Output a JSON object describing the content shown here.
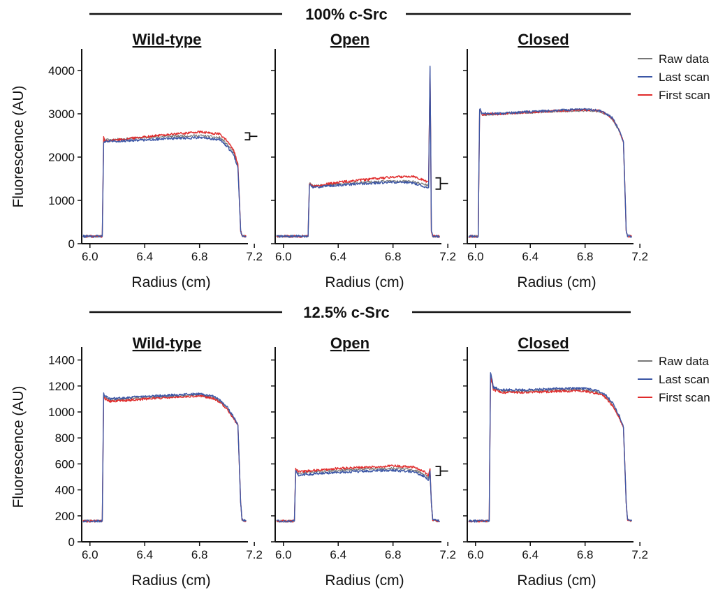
{
  "legend": [
    {
      "name": "Raw data",
      "color": "#777777"
    },
    {
      "name": "Last scan",
      "color": "#3b56a5"
    },
    {
      "name": "First scan",
      "color": "#e02b2b"
    }
  ],
  "chart_data": [
    {
      "type": "line",
      "group": "100% c-Src",
      "title": "Wild-type",
      "xlabel": "Radius (cm)",
      "ylabel": "Fluorescence (AU)",
      "xlim": [
        5.94,
        7.24
      ],
      "ylim": [
        0,
        4500
      ],
      "xticks": [
        6.0,
        6.4,
        6.8,
        7.2
      ],
      "xtick_labels": [
        "6.0",
        "6.4",
        "6.8",
        "7.2"
      ],
      "yticks": [
        0,
        1000,
        2000,
        3000,
        4000
      ],
      "ytick_labels": [
        "0",
        "1000",
        "2000",
        "3000",
        "4000"
      ],
      "series": [
        {
          "name": "Raw data",
          "x": [
            5.95,
            6.09,
            6.1,
            6.11,
            6.2,
            6.4,
            6.6,
            6.8,
            6.95,
            7.0,
            7.05,
            7.08,
            7.1,
            7.11,
            7.14
          ],
          "y": [
            170,
            170,
            2380,
            2400,
            2410,
            2450,
            2480,
            2500,
            2450,
            2300,
            2100,
            1800,
            300,
            180,
            170
          ]
        },
        {
          "name": "Last scan",
          "x": [
            5.95,
            6.09,
            6.1,
            6.11,
            6.2,
            6.4,
            6.6,
            6.8,
            6.95,
            7.0,
            7.05,
            7.08,
            7.1,
            7.11,
            7.14
          ],
          "y": [
            170,
            170,
            2350,
            2370,
            2370,
            2400,
            2430,
            2450,
            2400,
            2250,
            2050,
            1750,
            300,
            180,
            170
          ]
        },
        {
          "name": "First scan",
          "x": [
            5.95,
            6.09,
            6.1,
            6.11,
            6.2,
            6.4,
            6.6,
            6.8,
            6.95,
            7.0,
            7.05,
            7.08,
            7.1,
            7.11,
            7.14
          ],
          "y": [
            170,
            170,
            2450,
            2370,
            2400,
            2470,
            2530,
            2580,
            2530,
            2380,
            2150,
            1850,
            300,
            180,
            170
          ]
        }
      ],
      "bracket": {
        "x": 7.13,
        "y_low": 2400,
        "y_high": 2560
      }
    },
    {
      "type": "line",
      "group": "100% c-Src",
      "title": "Open",
      "xlabel": "Radius (cm)",
      "ylabel": "",
      "xlim": [
        5.94,
        7.24
      ],
      "ylim": [
        0,
        4500
      ],
      "xticks": [
        6.0,
        6.4,
        6.8,
        7.2
      ],
      "xtick_labels": [
        "6.0",
        "6.4",
        "6.8",
        "7.2"
      ],
      "yticks": [
        0,
        1000,
        2000,
        3000,
        4000
      ],
      "ytick_labels": [],
      "series": [
        {
          "name": "Raw data",
          "x": [
            5.95,
            6.18,
            6.19,
            6.22,
            6.4,
            6.6,
            6.8,
            6.95,
            7.05,
            7.06,
            7.07,
            7.075,
            7.08,
            7.09,
            7.14
          ],
          "y": [
            170,
            170,
            1400,
            1330,
            1380,
            1420,
            1450,
            1430,
            1350,
            1350,
            4050,
            2500,
            300,
            170,
            170
          ]
        },
        {
          "name": "Last scan",
          "x": [
            5.95,
            6.18,
            6.19,
            6.22,
            6.4,
            6.6,
            6.8,
            6.95,
            7.05,
            7.06,
            7.07,
            7.075,
            7.08,
            7.09,
            7.14
          ],
          "y": [
            170,
            170,
            1380,
            1300,
            1350,
            1390,
            1420,
            1400,
            1300,
            1300,
            4100,
            2500,
            300,
            170,
            170
          ]
        },
        {
          "name": "First scan",
          "x": [
            5.95,
            6.18,
            6.19,
            6.22,
            6.4,
            6.6,
            6.8,
            6.95,
            7.05,
            7.06,
            7.07,
            7.075,
            7.08,
            7.09,
            7.14
          ],
          "y": [
            170,
            170,
            1400,
            1320,
            1420,
            1480,
            1540,
            1560,
            1430,
            1430,
            4000,
            2500,
            300,
            170,
            170
          ]
        }
      ],
      "bracket": {
        "x": 7.11,
        "y_low": 1260,
        "y_high": 1520
      }
    },
    {
      "type": "line",
      "group": "100% c-Src",
      "title": "Closed",
      "xlabel": "Radius (cm)",
      "ylabel": "",
      "xlim": [
        5.94,
        7.24
      ],
      "ylim": [
        0,
        4500
      ],
      "xticks": [
        6.0,
        6.4,
        6.8,
        7.2
      ],
      "xtick_labels": [
        "6.0",
        "6.4",
        "6.8",
        "7.2"
      ],
      "yticks": [
        0,
        1000,
        2000,
        3000,
        4000
      ],
      "ytick_labels": [],
      "series": [
        {
          "name": "Raw data",
          "x": [
            5.95,
            6.02,
            6.03,
            6.05,
            6.2,
            6.4,
            6.6,
            6.8,
            6.9,
            6.95,
            7.0,
            7.05,
            7.08,
            7.1,
            7.11,
            7.14
          ],
          "y": [
            170,
            170,
            3080,
            2980,
            3000,
            3030,
            3060,
            3080,
            3060,
            3000,
            2880,
            2600,
            2350,
            300,
            180,
            170
          ]
        },
        {
          "name": "Last scan",
          "x": [
            5.95,
            6.02,
            6.03,
            6.05,
            6.2,
            6.4,
            6.6,
            6.8,
            6.9,
            6.95,
            7.0,
            7.05,
            7.08,
            7.1,
            7.11,
            7.14
          ],
          "y": [
            170,
            170,
            3120,
            3000,
            3010,
            3050,
            3080,
            3100,
            3080,
            3010,
            2900,
            2620,
            2350,
            300,
            180,
            170
          ]
        },
        {
          "name": "First scan",
          "x": [
            5.95,
            6.02,
            6.03,
            6.05,
            6.2,
            6.4,
            6.6,
            6.8,
            6.9,
            6.95,
            7.0,
            7.05,
            7.08,
            7.1,
            7.11,
            7.14
          ],
          "y": [
            170,
            170,
            3100,
            2990,
            3000,
            3040,
            3070,
            3090,
            3070,
            3000,
            2890,
            2610,
            2350,
            300,
            180,
            170
          ]
        }
      ]
    },
    {
      "type": "line",
      "group": "12.5% c-Src",
      "title": "Wild-type",
      "xlabel": "Radius (cm)",
      "ylabel": "Fluorescence (AU)",
      "xlim": [
        5.94,
        7.24
      ],
      "ylim": [
        0,
        1500
      ],
      "xticks": [
        6.0,
        6.4,
        6.8,
        7.2
      ],
      "xtick_labels": [
        "6.0",
        "6.4",
        "6.8",
        "7.2"
      ],
      "yticks": [
        0,
        200,
        400,
        600,
        800,
        1000,
        1200,
        1400
      ],
      "ytick_labels": [
        "0",
        "200",
        "400",
        "600",
        "800",
        "1000",
        "1200",
        "1400"
      ],
      "series": [
        {
          "name": "Raw data",
          "x": [
            5.95,
            6.09,
            6.1,
            6.11,
            6.15,
            6.4,
            6.6,
            6.8,
            6.9,
            6.95,
            7.0,
            7.05,
            7.08,
            7.1,
            7.11,
            7.14
          ],
          "y": [
            160,
            160,
            1140,
            1110,
            1090,
            1110,
            1120,
            1130,
            1110,
            1080,
            1030,
            950,
            900,
            300,
            170,
            160
          ]
        },
        {
          "name": "Last scan",
          "x": [
            5.95,
            6.09,
            6.1,
            6.11,
            6.15,
            6.4,
            6.6,
            6.8,
            6.9,
            6.95,
            7.0,
            7.05,
            7.08,
            7.1,
            7.11,
            7.14
          ],
          "y": [
            160,
            160,
            1150,
            1120,
            1100,
            1120,
            1130,
            1140,
            1120,
            1090,
            1040,
            960,
            900,
            300,
            170,
            160
          ]
        },
        {
          "name": "First scan",
          "x": [
            5.95,
            6.09,
            6.1,
            6.11,
            6.15,
            6.4,
            6.6,
            6.8,
            6.9,
            6.95,
            7.0,
            7.05,
            7.08,
            7.1,
            7.11,
            7.14
          ],
          "y": [
            160,
            160,
            1120,
            1100,
            1080,
            1100,
            1115,
            1125,
            1105,
            1075,
            1025,
            945,
            900,
            300,
            170,
            160
          ]
        }
      ]
    },
    {
      "type": "line",
      "group": "12.5% c-Src",
      "title": "Open",
      "xlabel": "Radius (cm)",
      "ylabel": "",
      "xlim": [
        5.94,
        7.24
      ],
      "ylim": [
        0,
        1500
      ],
      "xticks": [
        6.0,
        6.4,
        6.8,
        7.2
      ],
      "xtick_labels": [
        "6.0",
        "6.4",
        "6.8",
        "7.2"
      ],
      "yticks": [
        0,
        200,
        400,
        600,
        800,
        1000,
        1200,
        1400
      ],
      "ytick_labels": [],
      "series": [
        {
          "name": "Raw data",
          "x": [
            5.95,
            6.08,
            6.09,
            6.11,
            6.4,
            6.6,
            6.8,
            6.95,
            7.03,
            7.06,
            7.07,
            7.08,
            7.09,
            7.14
          ],
          "y": [
            160,
            160,
            560,
            530,
            550,
            560,
            565,
            555,
            520,
            490,
            550,
            300,
            170,
            160
          ]
        },
        {
          "name": "Last scan",
          "x": [
            5.95,
            6.08,
            6.09,
            6.11,
            6.4,
            6.6,
            6.8,
            6.95,
            7.03,
            7.06,
            7.07,
            7.08,
            7.09,
            7.14
          ],
          "y": [
            160,
            160,
            550,
            515,
            535,
            545,
            550,
            540,
            505,
            475,
            540,
            300,
            170,
            160
          ]
        },
        {
          "name": "First scan",
          "x": [
            5.95,
            6.08,
            6.09,
            6.11,
            6.4,
            6.6,
            6.8,
            6.95,
            7.03,
            7.06,
            7.07,
            7.08,
            7.09,
            7.14
          ],
          "y": [
            160,
            160,
            560,
            540,
            565,
            575,
            585,
            575,
            540,
            510,
            565,
            300,
            170,
            160
          ]
        }
      ],
      "bracket": {
        "x": 7.11,
        "y_low": 510,
        "y_high": 580
      }
    },
    {
      "type": "line",
      "group": "12.5% c-Src",
      "title": "Closed",
      "xlabel": "Radius (cm)",
      "ylabel": "",
      "xlim": [
        5.94,
        7.24
      ],
      "ylim": [
        0,
        1500
      ],
      "xticks": [
        6.0,
        6.4,
        6.8,
        7.2
      ],
      "xtick_labels": [
        "6.0",
        "6.4",
        "6.8",
        "7.2"
      ],
      "yticks": [
        0,
        200,
        400,
        600,
        800,
        1000,
        1200,
        1400
      ],
      "ytick_labels": [],
      "series": [
        {
          "name": "Raw data",
          "x": [
            5.95,
            6.1,
            6.11,
            6.13,
            6.2,
            6.4,
            6.6,
            6.8,
            6.9,
            6.95,
            7.0,
            7.05,
            7.08,
            7.1,
            7.11,
            7.14
          ],
          "y": [
            160,
            160,
            1290,
            1180,
            1160,
            1160,
            1170,
            1170,
            1150,
            1120,
            1060,
            960,
            880,
            300,
            170,
            160
          ]
        },
        {
          "name": "Last scan",
          "x": [
            5.95,
            6.1,
            6.11,
            6.13,
            6.2,
            6.4,
            6.6,
            6.8,
            6.9,
            6.95,
            7.0,
            7.05,
            7.08,
            7.1,
            7.11,
            7.14
          ],
          "y": [
            160,
            160,
            1310,
            1190,
            1170,
            1170,
            1180,
            1180,
            1160,
            1130,
            1070,
            970,
            880,
            300,
            170,
            160
          ]
        },
        {
          "name": "First scan",
          "x": [
            5.95,
            6.1,
            6.11,
            6.13,
            6.2,
            6.4,
            6.6,
            6.8,
            6.9,
            6.95,
            7.0,
            7.05,
            7.08,
            7.1,
            7.11,
            7.14
          ],
          "y": [
            160,
            160,
            1280,
            1170,
            1150,
            1150,
            1160,
            1160,
            1140,
            1110,
            1050,
            950,
            880,
            300,
            170,
            160
          ]
        }
      ]
    }
  ]
}
